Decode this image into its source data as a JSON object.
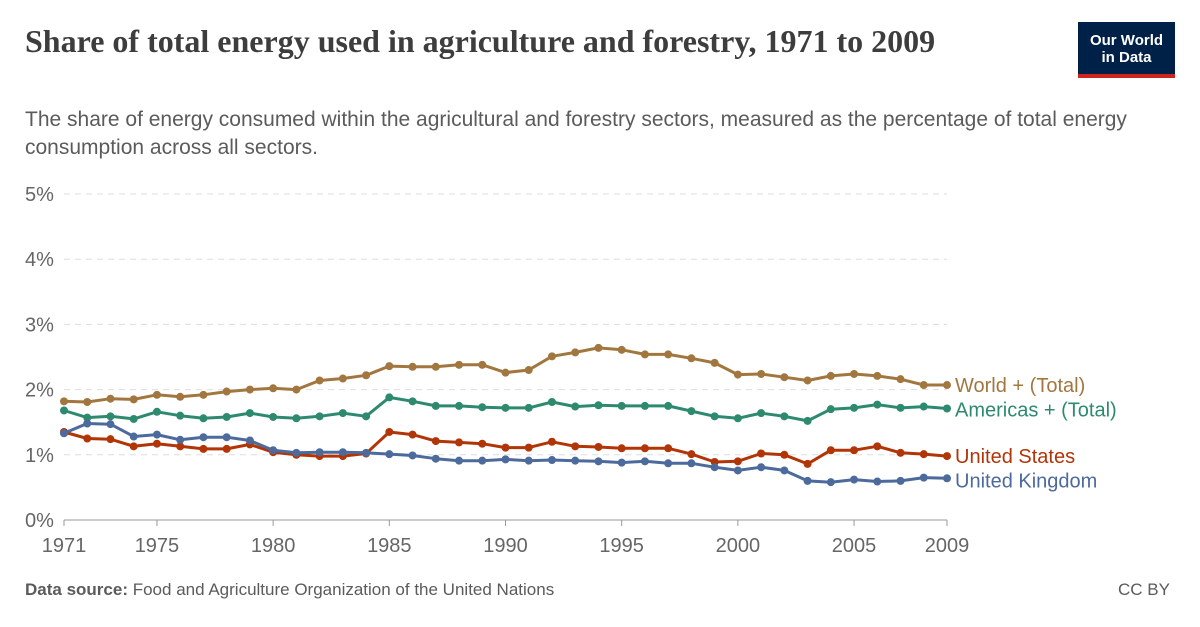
{
  "header": {
    "title": "Share of total energy used in agriculture and forestry, 1971 to 2009",
    "subtitle": "The share of energy consumed within the agricultural and forestry sectors, measured as the percentage of total energy consumption across all sectors.",
    "logo_line1": "Our World",
    "logo_line2": "in Data"
  },
  "footer": {
    "source_label": "Data source:",
    "source_text": "Food and Agriculture Organization of the United Nations",
    "license": "CC BY"
  },
  "colors": {
    "world": "#a2773f",
    "americas": "#2e8a6f",
    "us": "#b13507",
    "uk": "#4c6a9c",
    "grid": "#dddddd",
    "axis": "#999999"
  },
  "chart_data": {
    "type": "line",
    "x": [
      1971,
      1972,
      1973,
      1974,
      1975,
      1976,
      1977,
      1978,
      1979,
      1980,
      1981,
      1982,
      1983,
      1984,
      1985,
      1986,
      1987,
      1988,
      1989,
      1990,
      1991,
      1992,
      1993,
      1994,
      1995,
      1996,
      1997,
      1998,
      1999,
      2000,
      2001,
      2002,
      2003,
      2004,
      2005,
      2006,
      2007,
      2008,
      2009
    ],
    "x_ticks": [
      1971,
      1975,
      1980,
      1985,
      1990,
      1995,
      2000,
      2005,
      2009
    ],
    "y_ticks": [
      0,
      1,
      2,
      3,
      4,
      5
    ],
    "y_tick_labels": [
      "0%",
      "1%",
      "2%",
      "3%",
      "4%",
      "5%"
    ],
    "ylim": [
      0,
      5
    ],
    "xlim": [
      1971,
      2009
    ],
    "grid": "horizontal dashed",
    "legend": "inline labels at right end of lines",
    "series": [
      {
        "key": "world",
        "name": "World + (Total)",
        "values": [
          1.82,
          1.81,
          1.86,
          1.85,
          1.92,
          1.89,
          1.92,
          1.97,
          2.0,
          2.02,
          2.0,
          2.14,
          2.17,
          2.22,
          2.36,
          2.35,
          2.35,
          2.38,
          2.38,
          2.26,
          2.3,
          2.51,
          2.57,
          2.64,
          2.61,
          2.54,
          2.54,
          2.48,
          2.41,
          2.23,
          2.24,
          2.19,
          2.14,
          2.21,
          2.24,
          2.21,
          2.16,
          2.07,
          2.07
        ]
      },
      {
        "key": "americas",
        "name": "Americas + (Total)",
        "values": [
          1.68,
          1.57,
          1.59,
          1.55,
          1.66,
          1.6,
          1.56,
          1.58,
          1.64,
          1.58,
          1.56,
          1.59,
          1.64,
          1.59,
          1.88,
          1.82,
          1.75,
          1.75,
          1.73,
          1.72,
          1.72,
          1.81,
          1.74,
          1.76,
          1.75,
          1.75,
          1.75,
          1.67,
          1.59,
          1.56,
          1.64,
          1.59,
          1.52,
          1.7,
          1.72,
          1.77,
          1.72,
          1.74,
          1.71
        ]
      },
      {
        "key": "us",
        "name": "United States",
        "values": [
          1.35,
          1.25,
          1.24,
          1.13,
          1.17,
          1.13,
          1.09,
          1.09,
          1.16,
          1.04,
          1.0,
          0.98,
          0.98,
          1.02,
          1.35,
          1.31,
          1.21,
          1.19,
          1.17,
          1.11,
          1.11,
          1.2,
          1.13,
          1.12,
          1.1,
          1.1,
          1.1,
          1.01,
          0.89,
          0.9,
          1.02,
          1.0,
          0.86,
          1.07,
          1.07,
          1.13,
          1.03,
          1.01,
          0.98
        ]
      },
      {
        "key": "uk",
        "name": "United Kingdom",
        "values": [
          1.33,
          1.48,
          1.47,
          1.28,
          1.31,
          1.23,
          1.27,
          1.27,
          1.22,
          1.07,
          1.03,
          1.04,
          1.04,
          1.03,
          1.01,
          0.99,
          0.94,
          0.91,
          0.91,
          0.93,
          0.91,
          0.92,
          0.91,
          0.9,
          0.88,
          0.9,
          0.87,
          0.87,
          0.81,
          0.76,
          0.81,
          0.76,
          0.6,
          0.58,
          0.62,
          0.59,
          0.6,
          0.65,
          0.64
        ]
      }
    ]
  }
}
